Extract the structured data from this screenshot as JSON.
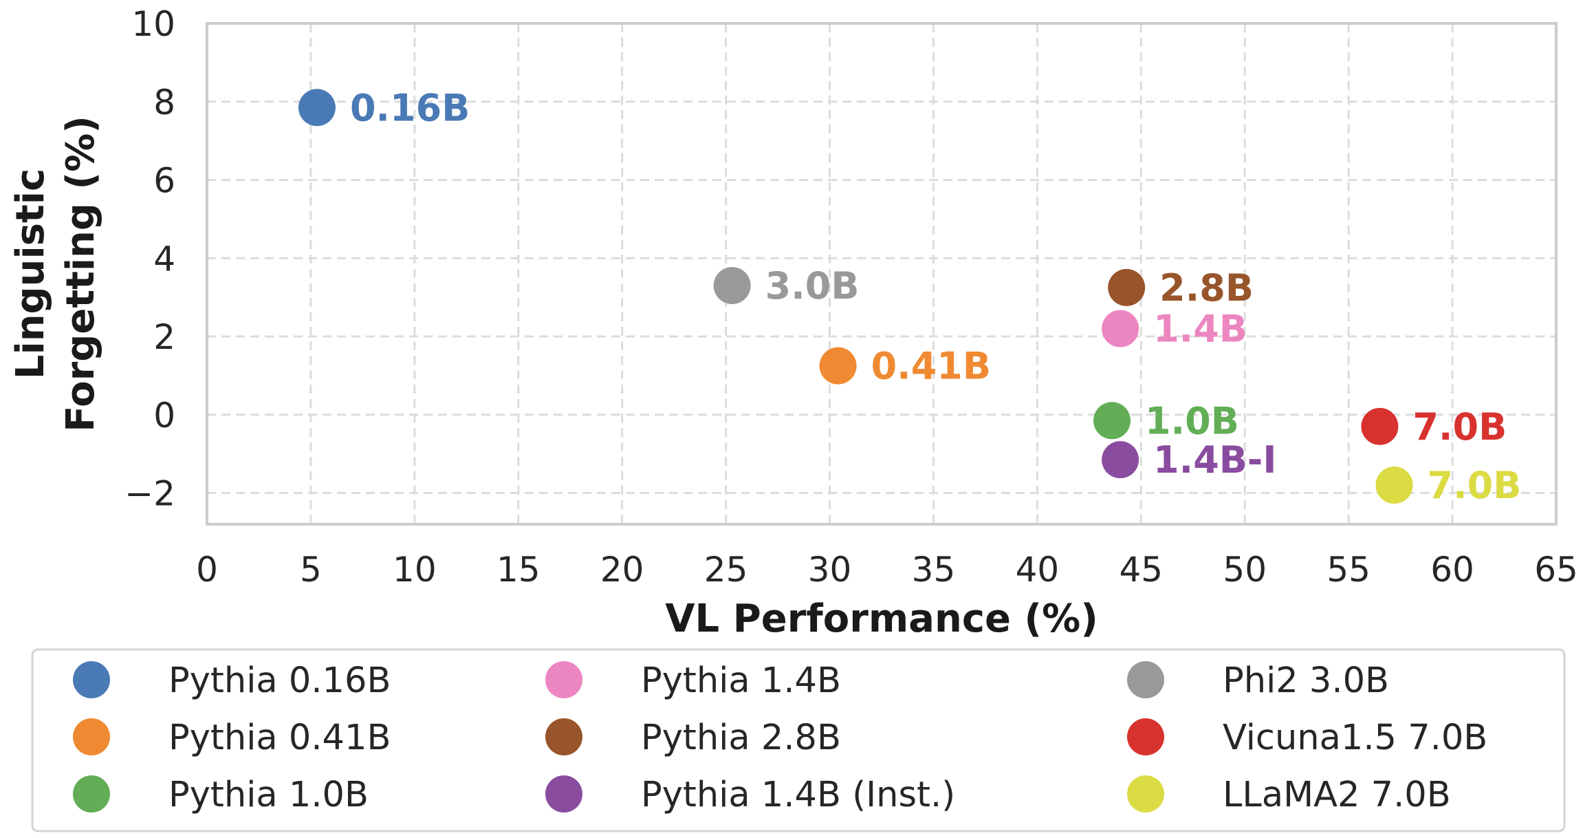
{
  "chart_data": {
    "type": "scatter",
    "title": "",
    "xlabel": "VL Performance (%)",
    "ylabel_lines": [
      "Linguistic",
      "Forgetting (%)"
    ],
    "xlim": [
      0,
      65
    ],
    "ylim": [
      -2.8,
      10
    ],
    "xticks": [
      0,
      5,
      10,
      15,
      20,
      25,
      30,
      35,
      40,
      45,
      50,
      55,
      60,
      65
    ],
    "xtick_labels": [
      "0",
      "5",
      "10",
      "15",
      "20",
      "25",
      "30",
      "35",
      "40",
      "45",
      "50",
      "55",
      "60",
      "65"
    ],
    "yticks": [
      -2,
      0,
      2,
      4,
      6,
      8,
      10
    ],
    "ytick_labels": [
      "−2",
      "0",
      "2",
      "4",
      "6",
      "8",
      "10"
    ],
    "grid": true,
    "legend_placement": "bottom",
    "series": [
      {
        "name": "Pythia 0.16B",
        "label": "0.16B",
        "color": "#4a7ab5",
        "x": 5.3,
        "y": 7.85
      },
      {
        "name": "Pythia 0.41B",
        "label": "0.41B",
        "color": "#f08a32",
        "x": 30.4,
        "y": 1.25
      },
      {
        "name": "Pythia 1.0B",
        "label": "1.0B",
        "color": "#62ad56",
        "x": 43.6,
        "y": -0.15
      },
      {
        "name": "Pythia 1.4B",
        "label": "1.4B",
        "color": "#ec86c0",
        "x": 44.0,
        "y": 2.2
      },
      {
        "name": "Pythia 2.8B",
        "label": "2.8B",
        "color": "#98552b",
        "x": 44.3,
        "y": 3.25
      },
      {
        "name": "Pythia 1.4B (Inst.)",
        "label": "1.4B-I",
        "color": "#8a4c9f",
        "x": 44.0,
        "y": -1.15
      },
      {
        "name": "Phi2 3.0B",
        "label": "3.0B",
        "color": "#999999",
        "x": 25.3,
        "y": 3.3
      },
      {
        "name": "Vicuna1.5 7.0B",
        "label": "7.0B",
        "color": "#d8322f",
        "x": 56.5,
        "y": -0.3
      },
      {
        "name": "LLaMA2 7.0B",
        "label": "7.0B",
        "color": "#dbdb44",
        "x": 57.2,
        "y": -1.8
      }
    ]
  }
}
